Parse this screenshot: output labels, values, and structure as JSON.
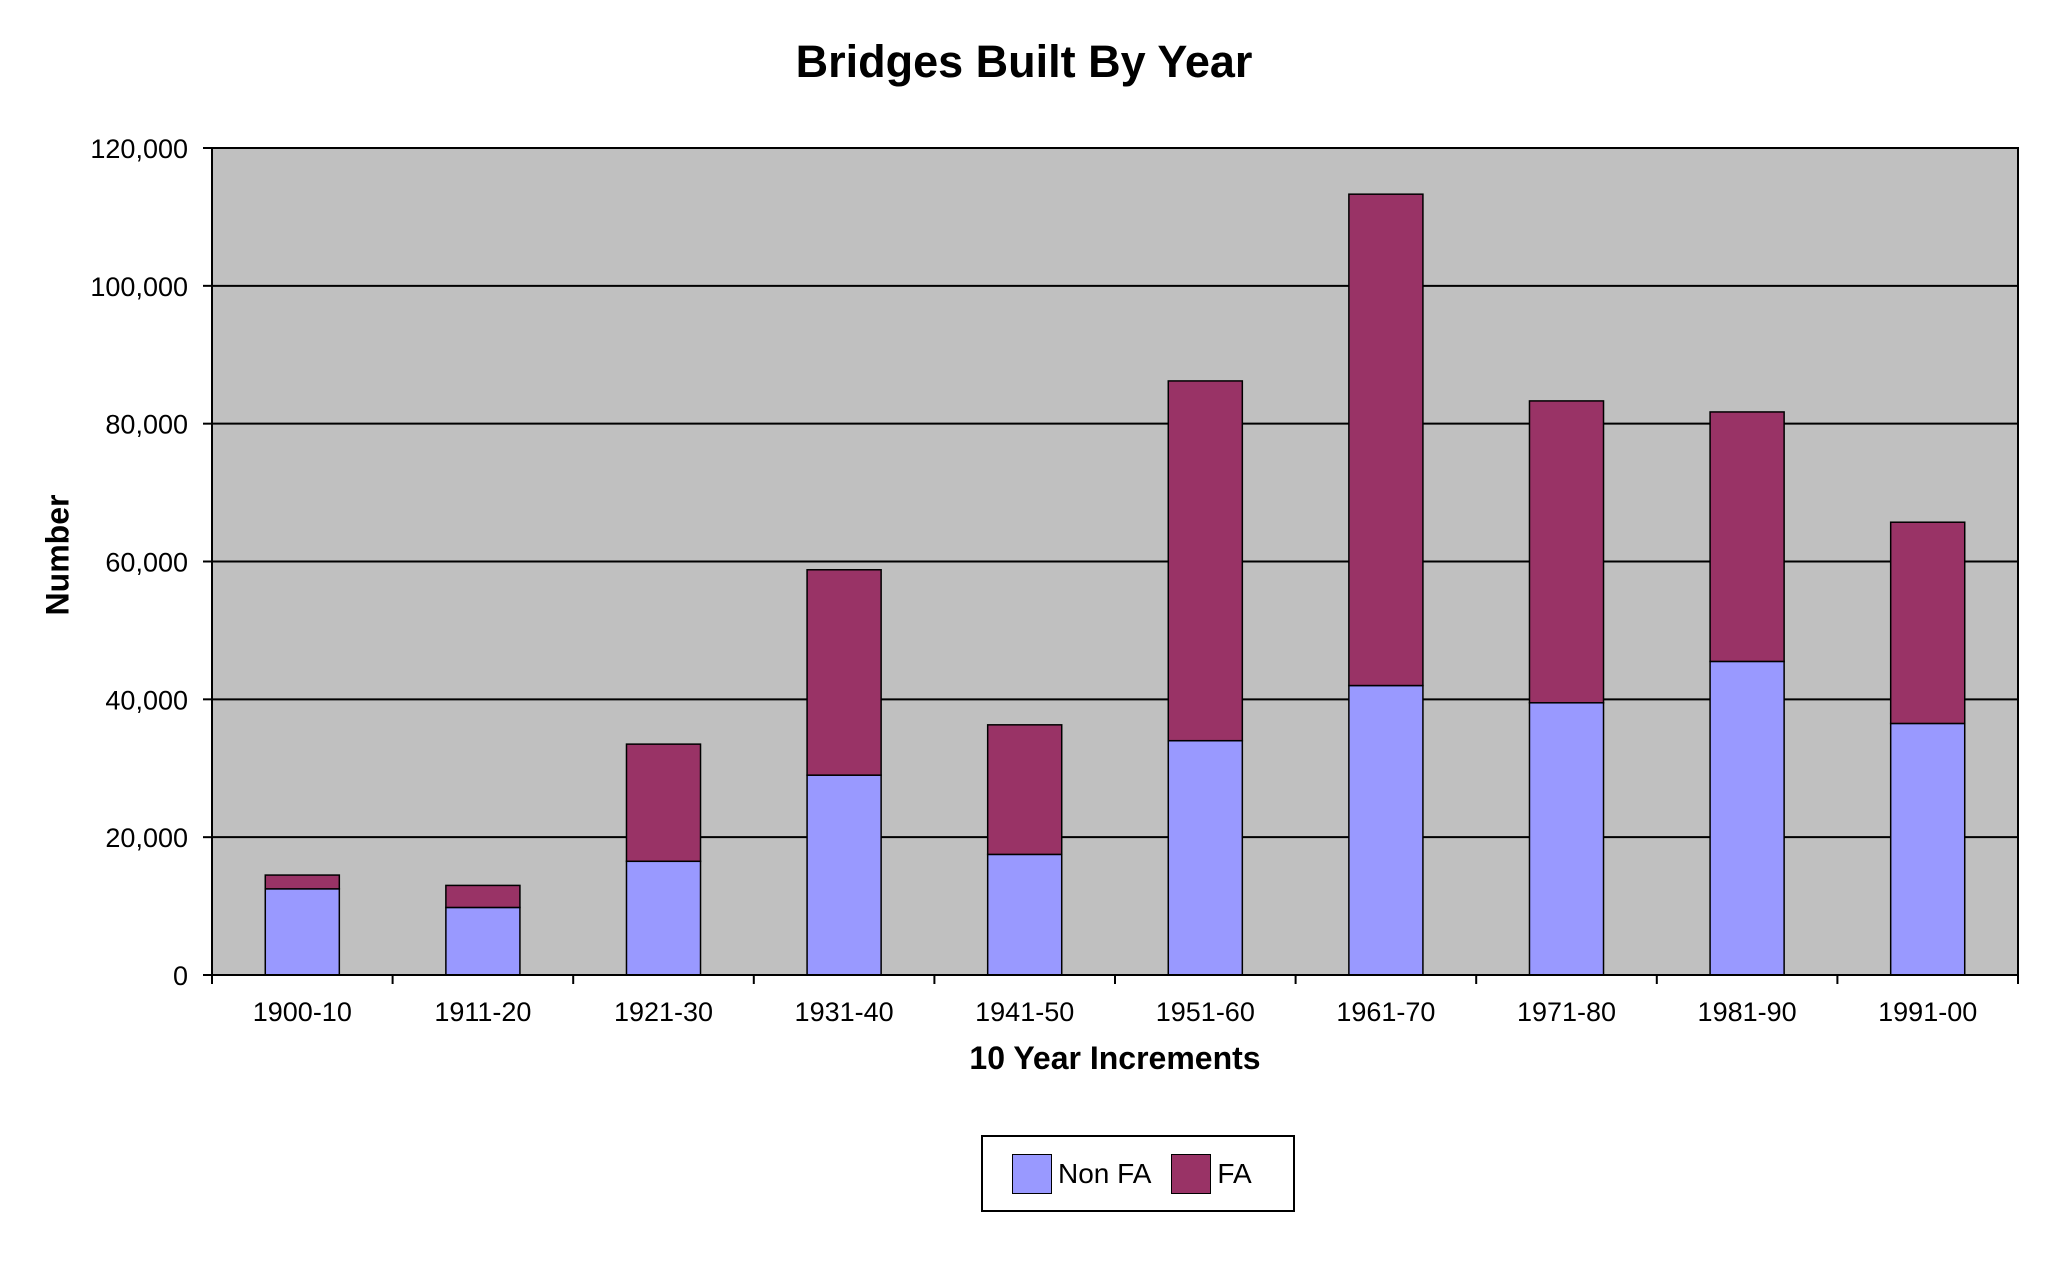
{
  "chart_data": {
    "type": "bar",
    "stacked": true,
    "title": "Bridges Built By Year",
    "xlabel": "10 Year Increments",
    "ylabel": "Number",
    "categories": [
      "1900-10",
      "1911-20",
      "1921-30",
      "1931-40",
      "1941-50",
      "1951-60",
      "1961-70",
      "1971-80",
      "1981-90",
      "1991-00"
    ],
    "series": [
      {
        "name": "Non FA",
        "color": "#9999ff",
        "values": [
          12500,
          9800,
          16500,
          29000,
          17500,
          34000,
          42000,
          39500,
          45500,
          36500
        ]
      },
      {
        "name": "FA",
        "color": "#993366",
        "values": [
          2000,
          3200,
          17000,
          29800,
          18800,
          52200,
          71300,
          43800,
          36200,
          29200
        ]
      }
    ],
    "ylim": [
      0,
      120000
    ],
    "yticks": [
      "0",
      "20,000",
      "40,000",
      "60,000",
      "80,000",
      "100,000",
      "120,000"
    ],
    "grid": true,
    "plot_background": "#c0c0c0",
    "legend_position": "bottom-center"
  }
}
